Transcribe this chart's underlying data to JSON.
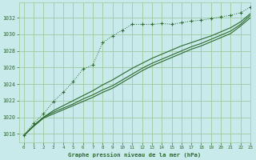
{
  "title": "Graphe pression niveau de la mer (hPa)",
  "bg_color": "#c8eaea",
  "grid_color": "#a0c8a0",
  "line_color": "#2d6a2d",
  "xlim": [
    -0.5,
    23
  ],
  "ylim": [
    1017.0,
    1033.8
  ],
  "yticks": [
    1018,
    1020,
    1022,
    1024,
    1026,
    1028,
    1030,
    1032
  ],
  "xticks": [
    0,
    1,
    2,
    3,
    4,
    5,
    6,
    7,
    8,
    9,
    10,
    11,
    12,
    13,
    14,
    15,
    16,
    17,
    18,
    19,
    20,
    21,
    22,
    23
  ],
  "dotted_series": [
    1017.8,
    1019.3,
    1020.4,
    1021.9,
    1023.0,
    1024.3,
    1025.8,
    1026.3,
    1029.0,
    1029.8,
    1030.5,
    1031.2,
    1031.2,
    1031.2,
    1031.3,
    1031.2,
    1031.4,
    1031.6,
    1031.7,
    1031.9,
    1032.1,
    1032.3,
    1032.6,
    1033.3
  ],
  "solid_series": [
    [
      1017.8,
      1019.0,
      1020.0,
      1020.8,
      1021.4,
      1022.0,
      1022.6,
      1023.2,
      1023.9,
      1024.5,
      1025.2,
      1025.9,
      1026.5,
      1027.1,
      1027.6,
      1028.1,
      1028.6,
      1029.0,
      1029.4,
      1029.8,
      1030.3,
      1030.8,
      1031.5,
      1032.5
    ],
    [
      1017.8,
      1019.0,
      1020.0,
      1020.6,
      1021.1,
      1021.6,
      1022.2,
      1022.7,
      1023.3,
      1023.8,
      1024.5,
      1025.2,
      1025.9,
      1026.5,
      1027.0,
      1027.5,
      1028.0,
      1028.5,
      1028.9,
      1029.4,
      1029.9,
      1030.4,
      1031.2,
      1032.3
    ],
    [
      1017.8,
      1018.9,
      1019.9,
      1020.4,
      1020.9,
      1021.4,
      1021.9,
      1022.4,
      1023.0,
      1023.5,
      1024.2,
      1024.9,
      1025.6,
      1026.2,
      1026.7,
      1027.2,
      1027.7,
      1028.2,
      1028.6,
      1029.1,
      1029.6,
      1030.1,
      1031.0,
      1032.0
    ]
  ]
}
